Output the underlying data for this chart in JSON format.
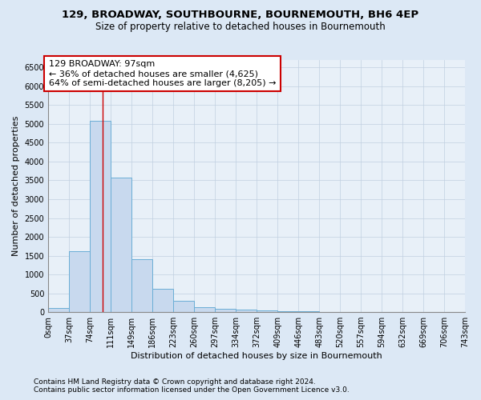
{
  "title_line1": "129, BROADWAY, SOUTHBOURNE, BOURNEMOUTH, BH6 4EP",
  "title_line2": "Size of property relative to detached houses in Bournemouth",
  "xlabel": "Distribution of detached houses by size in Bournemouth",
  "ylabel": "Number of detached properties",
  "bar_values": [
    100,
    1625,
    5075,
    3575,
    1400,
    625,
    300,
    130,
    90,
    55,
    50,
    30,
    30,
    10,
    5,
    3,
    2,
    1,
    1,
    1
  ],
  "bin_edges": [
    0,
    37,
    74,
    111,
    149,
    186,
    223,
    260,
    297,
    334,
    372,
    409,
    446,
    483,
    520,
    557,
    594,
    632,
    669,
    706,
    743
  ],
  "bar_color": "#c8d9ee",
  "bar_edge_color": "#6baed6",
  "property_size_sqm": 97,
  "vline_color": "#cc0000",
  "annotation_text": "129 BROADWAY: 97sqm\n← 36% of detached houses are smaller (4,625)\n64% of semi-detached houses are larger (8,205) →",
  "annotation_box_color": "#ffffff",
  "annotation_box_edge_color": "#cc0000",
  "ylim": [
    0,
    6700
  ],
  "yticks": [
    0,
    500,
    1000,
    1500,
    2000,
    2500,
    3000,
    3500,
    4000,
    4500,
    5000,
    5500,
    6000,
    6500
  ],
  "figure_bg": "#dce8f5",
  "plot_bg": "#e8f0f8",
  "grid_color": "#c0cfe0",
  "footer_line1": "Contains HM Land Registry data © Crown copyright and database right 2024.",
  "footer_line2": "Contains public sector information licensed under the Open Government Licence v3.0.",
  "title_fontsize": 9.5,
  "subtitle_fontsize": 8.5,
  "axis_label_fontsize": 8,
  "tick_fontsize": 7,
  "annotation_fontsize": 8,
  "footer_fontsize": 6.5
}
